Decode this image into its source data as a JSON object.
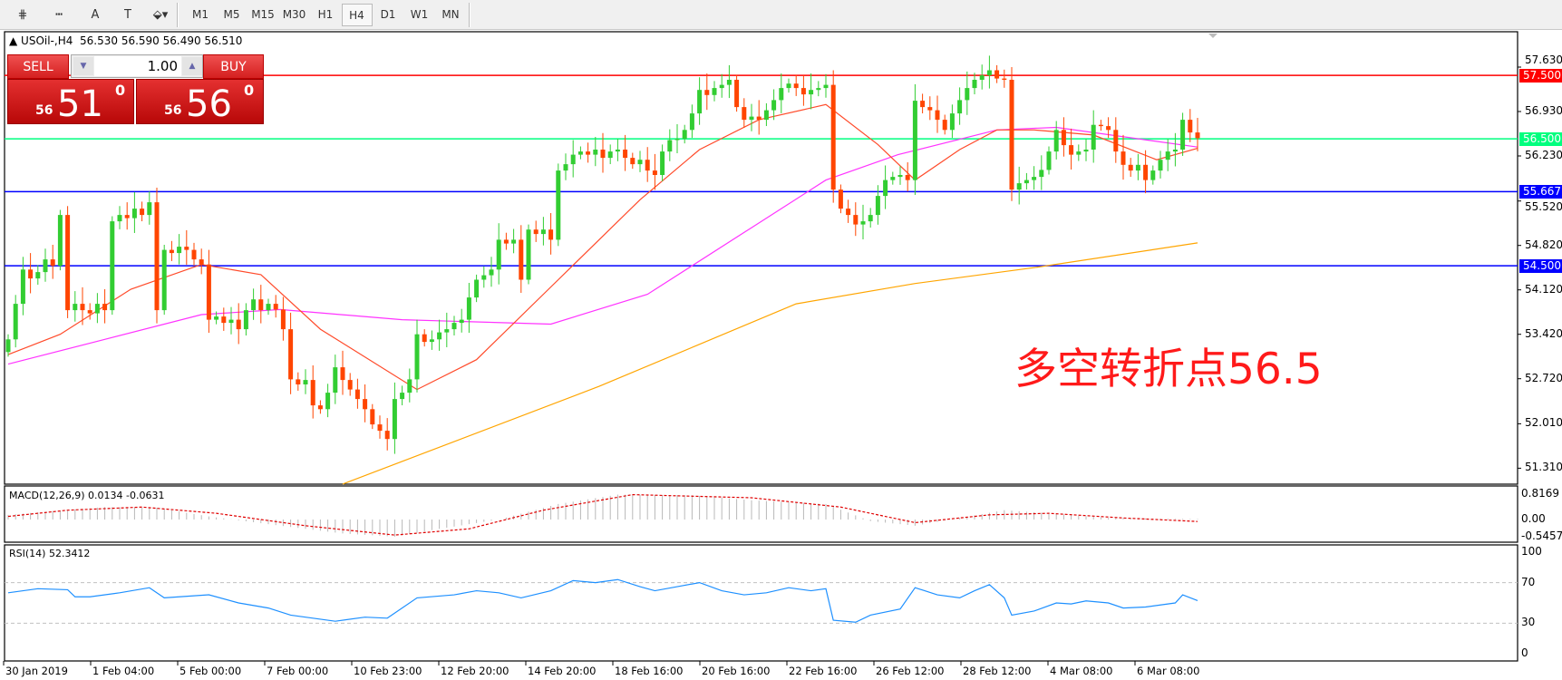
{
  "toolbar": {
    "tools": [
      {
        "name": "elliott-icon",
        "glyph": "⋕"
      },
      {
        "name": "fibo-icon",
        "glyph": "┅"
      },
      {
        "name": "text-icon",
        "glyph": "A"
      },
      {
        "name": "text-label-icon",
        "glyph": "T"
      },
      {
        "name": "arrows-icon",
        "glyph": "⬙▾"
      }
    ],
    "timeframes": [
      "M1",
      "M5",
      "M15",
      "M30",
      "H1",
      "H4",
      "D1",
      "W1",
      "MN"
    ],
    "active_timeframe": "H4"
  },
  "header": {
    "symbol": "USOil-,H4",
    "ohlc": "56.530 56.590 56.490 56.510"
  },
  "trade": {
    "sell_label": "SELL",
    "buy_label": "BUY",
    "lot": "1.00",
    "sell_small": "56",
    "sell_big": "51",
    "sell_sup": "0",
    "buy_small": "56",
    "buy_big": "56",
    "buy_sup": "0"
  },
  "annotation": "多空转折点56.5",
  "colors": {
    "bull": "#32cd32",
    "bear": "#ff4500",
    "ma_fast": "#ff4a2a",
    "ma_mid": "#ff33ff",
    "ma_slow": "#ffa500",
    "resistance": "#ff0000",
    "pivot": "#00ff7f",
    "support": "#0000ff"
  },
  "chart_data": {
    "type": "candlestick",
    "price_ticks": [
      "57.630",
      "56.930",
      "56.230",
      "55.520",
      "54.820",
      "54.120",
      "53.420",
      "52.720",
      "52.010",
      "51.310"
    ],
    "x_labels": [
      "30 Jan 2019",
      "1 Feb 04:00",
      "5 Feb 00:00",
      "7 Feb 00:00",
      "10 Feb 23:00",
      "12 Feb 20:00",
      "14 Feb 20:00",
      "18 Feb 16:00",
      "20 Feb 16:00",
      "22 Feb 16:00",
      "26 Feb 12:00",
      "28 Feb 12:00",
      "4 Mar 08:00",
      "6 Mar 08:00"
    ],
    "close": [
      53.34,
      53.9,
      54.44,
      54.3,
      54.4,
      54.6,
      54.5,
      55.3,
      53.8,
      53.9,
      53.8,
      53.75,
      53.9,
      53.8,
      55.2,
      55.3,
      55.25,
      55.4,
      55.3,
      55.5,
      53.8,
      54.75,
      54.7,
      54.8,
      54.75,
      54.6,
      54.52,
      53.65,
      53.7,
      53.6,
      53.65,
      53.5,
      53.8,
      53.97,
      53.8,
      53.9,
      53.81,
      53.5,
      52.71,
      52.63,
      52.7,
      52.3,
      52.24,
      52.5,
      52.9,
      52.7,
      52.55,
      52.4,
      52.24,
      52.0,
      51.9,
      51.77,
      52.4,
      52.5,
      52.71,
      53.42,
      53.3,
      53.34,
      53.45,
      53.5,
      53.6,
      53.65,
      54.0,
      54.28,
      54.35,
      54.44,
      54.91,
      54.85,
      54.91,
      54.28,
      55.07,
      55.0,
      55.07,
      54.91,
      56.0,
      56.1,
      56.25,
      56.3,
      56.25,
      56.33,
      56.2,
      56.3,
      56.33,
      56.2,
      56.1,
      56.17,
      56.0,
      55.93,
      56.3,
      56.48,
      56.5,
      56.64,
      56.9,
      57.27,
      57.19,
      57.3,
      57.35,
      57.43,
      57.0,
      56.8,
      56.85,
      56.8,
      56.95,
      57.11,
      57.3,
      57.37,
      57.3,
      57.2,
      57.27,
      57.3,
      57.35,
      55.7,
      55.4,
      55.3,
      55.15,
      55.2,
      55.3,
      55.6,
      55.85,
      55.9,
      55.93,
      55.85,
      57.1,
      57.0,
      56.95,
      56.8,
      56.64,
      56.9,
      57.11,
      57.3,
      57.43,
      57.5,
      57.58,
      57.45,
      57.43,
      55.7,
      55.8,
      55.85,
      55.9,
      56.01,
      56.3,
      56.64,
      56.4,
      56.25,
      56.3,
      56.33,
      56.72,
      56.7,
      56.64,
      56.3,
      56.09,
      56.0,
      56.09,
      55.85,
      56.0,
      56.17,
      56.3,
      56.33,
      56.8,
      56.6,
      56.51
    ],
    "ma_fast": [
      [
        0,
        53.1
      ],
      [
        7,
        53.42
      ],
      [
        16.5,
        54.13
      ],
      [
        26,
        54.52
      ],
      [
        34,
        54.36
      ],
      [
        42,
        53.5
      ],
      [
        55,
        52.55
      ],
      [
        63,
        53.02
      ],
      [
        74,
        54.28
      ],
      [
        85,
        55.54
      ],
      [
        93,
        56.33
      ],
      [
        101,
        56.8
      ],
      [
        110,
        57.04
      ],
      [
        117,
        56.41
      ],
      [
        122,
        55.85
      ],
      [
        128,
        56.33
      ],
      [
        133,
        56.64
      ],
      [
        138,
        56.64
      ],
      [
        146,
        56.56
      ],
      [
        154.5,
        56.17
      ],
      [
        160,
        56.35
      ]
    ],
    "ma_mid": [
      [
        0,
        52.95
      ],
      [
        13,
        53.34
      ],
      [
        26,
        53.73
      ],
      [
        36.6,
        53.81
      ],
      [
        53,
        53.65
      ],
      [
        73,
        53.58
      ],
      [
        86,
        54.05
      ],
      [
        99.6,
        55.07
      ],
      [
        110,
        55.85
      ],
      [
        119.7,
        56.25
      ],
      [
        133,
        56.64
      ],
      [
        141,
        56.68
      ],
      [
        160,
        56.37
      ]
    ],
    "ma_slow": [
      [
        45,
        51.06
      ],
      [
        79.5,
        52.6
      ],
      [
        106,
        53.9
      ],
      [
        122,
        54.22
      ],
      [
        138,
        54.47
      ],
      [
        160,
        54.86
      ]
    ],
    "levels": [
      {
        "value": "57.500",
        "color": "#ff0000"
      },
      {
        "value": "56.500",
        "color": "#00ff7f"
      },
      {
        "value": "55.667",
        "color": "#0000ff"
      },
      {
        "value": "54.500",
        "color": "#0000ff"
      }
    ],
    "macd": {
      "label": "MACD(12,26,9) 0.0134 -0.0631",
      "ticks": [
        "0.8169",
        "0.00",
        "-0.5457"
      ],
      "histogram": [
        [
          0,
          0.15
        ],
        [
          5,
          0.25
        ],
        [
          13,
          0.4
        ],
        [
          20,
          0.38
        ],
        [
          27,
          0.1
        ],
        [
          35,
          -0.15
        ],
        [
          45,
          -0.45
        ],
        [
          52,
          -0.55
        ],
        [
          58,
          -0.3
        ],
        [
          66,
          0.0
        ],
        [
          74,
          0.5
        ],
        [
          82,
          0.8
        ],
        [
          92,
          0.78
        ],
        [
          100,
          0.62
        ],
        [
          110,
          0.5
        ],
        [
          116,
          -0.05
        ],
        [
          122,
          -0.2
        ],
        [
          128,
          0.05
        ],
        [
          134,
          0.3
        ],
        [
          140,
          0.2
        ],
        [
          148,
          0.05
        ],
        [
          160,
          0.0134
        ]
      ],
      "signal": [
        [
          0,
          0.1
        ],
        [
          8,
          0.3
        ],
        [
          18,
          0.4
        ],
        [
          28,
          0.2
        ],
        [
          40,
          -0.2
        ],
        [
          52,
          -0.5
        ],
        [
          62,
          -0.3
        ],
        [
          72,
          0.3
        ],
        [
          84,
          0.8
        ],
        [
          100,
          0.7
        ],
        [
          112,
          0.4
        ],
        [
          122,
          -0.1
        ],
        [
          132,
          0.15
        ],
        [
          140,
          0.2
        ],
        [
          150,
          0.05
        ],
        [
          160,
          -0.0631
        ]
      ]
    },
    "rsi": {
      "label": "RSI(14) 52.3412",
      "ticks": [
        "100",
        "70",
        "30",
        "0"
      ],
      "levels": [
        70,
        30
      ],
      "values": [
        [
          0,
          60
        ],
        [
          4,
          64
        ],
        [
          8,
          63
        ],
        [
          9,
          56
        ],
        [
          11,
          56
        ],
        [
          15,
          60
        ],
        [
          19,
          65
        ],
        [
          21,
          55
        ],
        [
          27,
          58
        ],
        [
          31,
          50
        ],
        [
          35,
          45
        ],
        [
          38,
          38
        ],
        [
          44,
          32
        ],
        [
          48,
          36
        ],
        [
          51,
          35
        ],
        [
          55,
          55
        ],
        [
          60,
          58
        ],
        [
          63,
          62
        ],
        [
          66,
          60
        ],
        [
          69,
          55
        ],
        [
          73,
          62
        ],
        [
          76,
          72
        ],
        [
          79,
          70
        ],
        [
          82,
          73
        ],
        [
          85,
          66
        ],
        [
          87,
          62
        ],
        [
          90,
          66
        ],
        [
          93,
          70
        ],
        [
          96,
          62
        ],
        [
          99,
          58
        ],
        [
          102,
          60
        ],
        [
          105,
          65
        ],
        [
          108,
          62
        ],
        [
          110,
          64
        ],
        [
          111,
          33
        ],
        [
          114,
          31
        ],
        [
          116,
          38
        ],
        [
          120,
          44
        ],
        [
          122,
          65
        ],
        [
          125,
          58
        ],
        [
          128,
          55
        ],
        [
          130,
          62
        ],
        [
          132,
          68
        ],
        [
          134,
          55
        ],
        [
          135,
          38
        ],
        [
          138,
          42
        ],
        [
          141,
          50
        ],
        [
          143,
          49
        ],
        [
          145,
          52
        ],
        [
          148,
          50
        ],
        [
          150,
          45
        ],
        [
          153,
          46
        ],
        [
          155,
          48
        ],
        [
          157,
          50
        ],
        [
          158,
          58
        ],
        [
          160,
          52.3
        ]
      ]
    }
  }
}
